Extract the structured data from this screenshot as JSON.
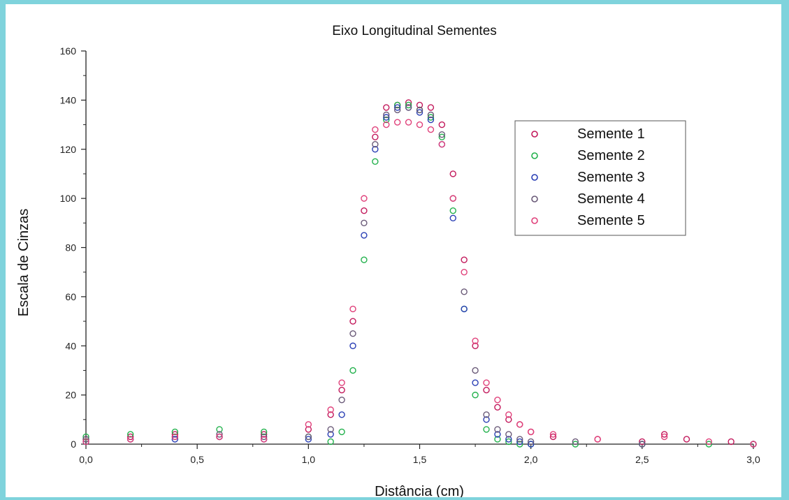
{
  "chart_data": {
    "type": "scatter",
    "title": "Eixo Longitudinal Sementes",
    "xlabel": "Distância (cm)",
    "ylabel": "Escala de Cinzas",
    "xlim": [
      0.0,
      3.0
    ],
    "ylim": [
      0,
      160
    ],
    "x_ticks": [
      "0,0",
      "0,5",
      "1,0",
      "1,5",
      "2,0",
      "2,5",
      "3,0"
    ],
    "y_ticks": [
      "0",
      "20",
      "40",
      "60",
      "80",
      "100",
      "120",
      "140",
      "160"
    ],
    "legend_position": "top-right",
    "grid": false,
    "marker": "open-circle",
    "series": [
      {
        "name": "Semente 1",
        "color": "#c2185b",
        "x": [
          0.0,
          0.2,
          0.4,
          0.6,
          0.8,
          1.0,
          1.1,
          1.15,
          1.2,
          1.25,
          1.3,
          1.35,
          1.4,
          1.45,
          1.5,
          1.55,
          1.6,
          1.65,
          1.7,
          1.75,
          1.8,
          1.85,
          1.9,
          1.95,
          2.0,
          2.1,
          2.3,
          2.5,
          2.6,
          2.7,
          2.9,
          3.0
        ],
        "y": [
          2,
          3,
          4,
          3,
          4,
          6,
          12,
          22,
          50,
          95,
          125,
          137,
          138,
          139,
          138,
          137,
          130,
          110,
          75,
          40,
          22,
          15,
          10,
          8,
          5,
          3,
          2,
          1,
          4,
          2,
          1,
          0
        ]
      },
      {
        "name": "Semente 2",
        "color": "#22b14c",
        "x": [
          0.0,
          0.2,
          0.4,
          0.6,
          0.8,
          1.0,
          1.1,
          1.15,
          1.2,
          1.25,
          1.3,
          1.35,
          1.4,
          1.45,
          1.5,
          1.55,
          1.6,
          1.65,
          1.7,
          1.75,
          1.8,
          1.85,
          1.9,
          1.95,
          2.0,
          2.2,
          2.5,
          2.8,
          3.0
        ],
        "y": [
          3,
          4,
          5,
          6,
          5,
          3,
          1,
          5,
          30,
          75,
          115,
          132,
          138,
          138,
          136,
          133,
          125,
          95,
          55,
          20,
          6,
          2,
          1,
          0,
          0,
          0,
          0,
          0,
          0
        ]
      },
      {
        "name": "Semente 3",
        "color": "#2a3fb5",
        "x": [
          0.0,
          0.2,
          0.4,
          0.6,
          0.8,
          1.0,
          1.1,
          1.15,
          1.2,
          1.25,
          1.3,
          1.35,
          1.4,
          1.45,
          1.5,
          1.55,
          1.6,
          1.65,
          1.7,
          1.75,
          1.8,
          1.85,
          1.9,
          1.95,
          2.0,
          2.5,
          3.0
        ],
        "y": [
          1,
          2,
          2,
          3,
          2,
          2,
          4,
          12,
          40,
          85,
          120,
          133,
          137,
          137,
          135,
          132,
          122,
          92,
          55,
          25,
          10,
          4,
          2,
          1,
          0,
          0,
          0
        ]
      },
      {
        "name": "Semente 4",
        "color": "#6a5a78",
        "x": [
          0.0,
          0.2,
          0.4,
          0.6,
          0.8,
          1.0,
          1.1,
          1.15,
          1.2,
          1.25,
          1.3,
          1.35,
          1.4,
          1.45,
          1.5,
          1.55,
          1.6,
          1.65,
          1.7,
          1.75,
          1.8,
          1.85,
          1.9,
          1.95,
          2.0,
          2.2,
          2.5,
          3.0
        ],
        "y": [
          2,
          2,
          3,
          4,
          3,
          3,
          6,
          18,
          45,
          90,
          122,
          134,
          136,
          137,
          136,
          134,
          126,
          100,
          62,
          30,
          12,
          6,
          4,
          2,
          1,
          1,
          0,
          0
        ]
      },
      {
        "name": "Semente 5",
        "color": "#e0407a",
        "x": [
          0.0,
          0.2,
          0.4,
          0.6,
          0.8,
          1.0,
          1.1,
          1.15,
          1.2,
          1.25,
          1.3,
          1.35,
          1.4,
          1.45,
          1.5,
          1.55,
          1.6,
          1.65,
          1.7,
          1.75,
          1.8,
          1.85,
          1.9,
          1.95,
          2.0,
          2.1,
          2.3,
          2.6,
          2.8,
          3.0
        ],
        "y": [
          1,
          2,
          3,
          3,
          2,
          8,
          14,
          25,
          55,
          100,
          128,
          130,
          131,
          131,
          130,
          128,
          122,
          100,
          70,
          42,
          25,
          18,
          12,
          8,
          5,
          4,
          2,
          3,
          1,
          0
        ]
      }
    ]
  }
}
